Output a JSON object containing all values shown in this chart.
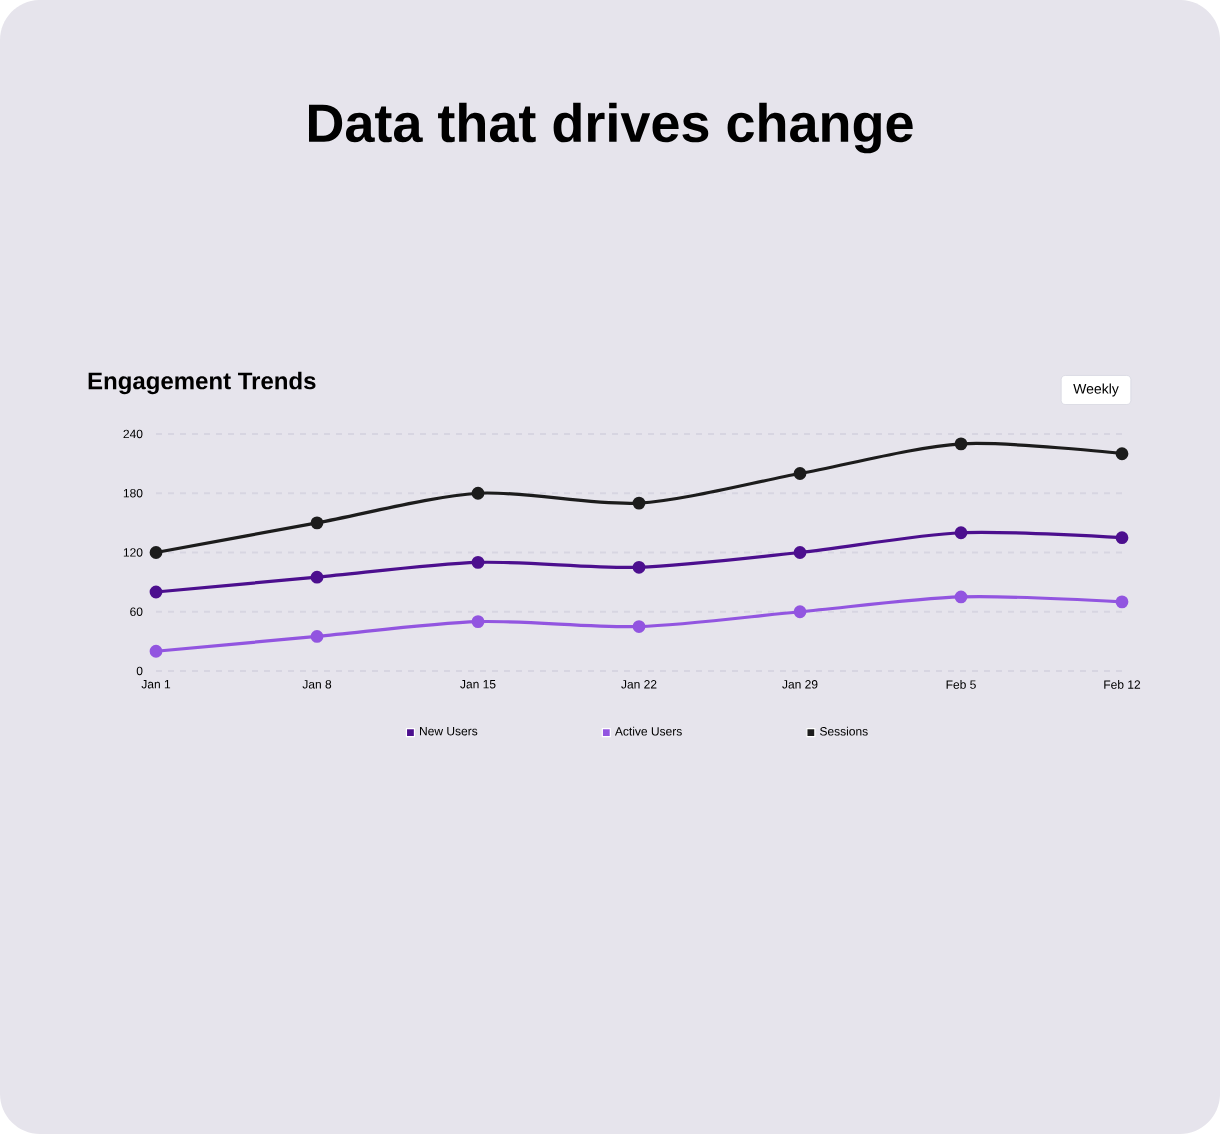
{
  "chart_data": {
    "type": "line",
    "title": "Data that drives change",
    "subtitle": "Engagement Trends",
    "annotations": [
      "Weekly"
    ],
    "categories": [
      "Jan 1",
      "Jan 8",
      "Jan 15",
      "Jan 22",
      "Jan 29",
      "Feb 5",
      "Feb 12"
    ],
    "series": [
      {
        "name": "New Users",
        "color": "#4c0f8e",
        "values": [
          80,
          95,
          110,
          105,
          120,
          140,
          135
        ]
      },
      {
        "name": "Active Users",
        "color": "#9255e0",
        "values": [
          20,
          35,
          50,
          45,
          60,
          75,
          70
        ]
      },
      {
        "name": "Sessions",
        "color": "#1c1c1c",
        "values": [
          120,
          150,
          180,
          170,
          200,
          230,
          220
        ]
      }
    ],
    "ylim": [
      0,
      240
    ],
    "yticks": [
      0,
      60,
      120,
      180,
      240
    ],
    "grid": "y",
    "legend": "bottom",
    "marker": "circle",
    "line_style": "solid"
  }
}
